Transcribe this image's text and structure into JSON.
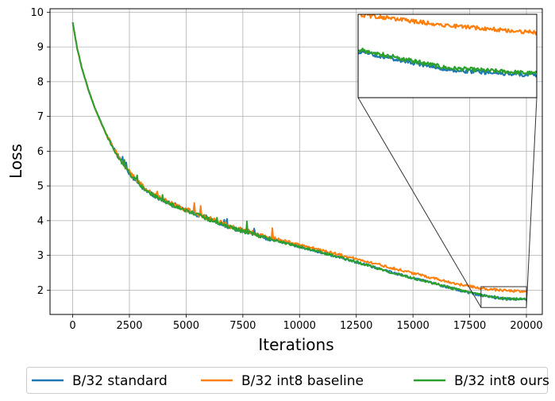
{
  "chart_data": {
    "type": "line",
    "xlabel": "Iterations",
    "ylabel": "Loss",
    "xlim": [
      -1000,
      20700
    ],
    "ylim": [
      1.3,
      10.1
    ],
    "xticks": [
      0,
      2500,
      5000,
      7500,
      10000,
      12500,
      15000,
      17500,
      20000
    ],
    "yticks": [
      2,
      3,
      4,
      5,
      6,
      7,
      8,
      9,
      10
    ],
    "grid": true,
    "legend_placement": "bottom-center",
    "legend_columns": 3,
    "x": [
      0,
      200,
      400,
      700,
      1000,
      1500,
      2000,
      2500,
      3000,
      3500,
      4000,
      4500,
      5000,
      5500,
      6000,
      7000,
      8000,
      9000,
      10000,
      11000,
      12000,
      13000,
      14000,
      15000,
      16000,
      17000,
      18000,
      19000,
      20000
    ],
    "series": [
      {
        "name": "B/32 standard",
        "color": "#1f77b4",
        "values": [
          9.7,
          8.95,
          8.4,
          7.75,
          7.2,
          6.45,
          5.85,
          5.35,
          5.0,
          4.75,
          4.57,
          4.42,
          4.3,
          4.17,
          4.04,
          3.8,
          3.6,
          3.42,
          3.25,
          3.08,
          2.9,
          2.72,
          2.52,
          2.35,
          2.18,
          2.0,
          1.85,
          1.75,
          1.72
        ]
      },
      {
        "name": "B/32 int8 baseline",
        "color": "#ff7f0e",
        "values": [
          9.7,
          8.95,
          8.4,
          7.75,
          7.2,
          6.45,
          5.87,
          5.4,
          5.05,
          4.78,
          4.6,
          4.45,
          4.32,
          4.2,
          4.07,
          3.83,
          3.64,
          3.47,
          3.31,
          3.15,
          2.98,
          2.82,
          2.65,
          2.49,
          2.33,
          2.17,
          2.05,
          1.99,
          1.95
        ]
      },
      {
        "name": "B/32 int8 ours",
        "color": "#2ca02c",
        "values": [
          9.7,
          8.95,
          8.4,
          7.75,
          7.2,
          6.45,
          5.85,
          5.37,
          5.0,
          4.76,
          4.58,
          4.43,
          4.3,
          4.17,
          4.04,
          3.8,
          3.6,
          3.42,
          3.25,
          3.08,
          2.9,
          2.72,
          2.52,
          2.35,
          2.18,
          2.01,
          1.86,
          1.76,
          1.73
        ]
      }
    ],
    "inset": {
      "type": "zoom",
      "xlim": [
        18000,
        20000
      ],
      "ylim": [
        1.5,
        2.1
      ],
      "placement": "top-right"
    }
  }
}
